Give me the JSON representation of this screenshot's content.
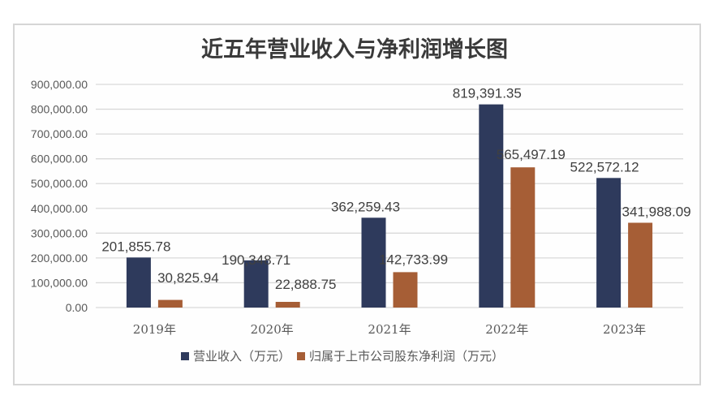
{
  "chart_data": {
    "type": "bar",
    "title": "近五年营业收入与净利润增长图",
    "xlabel": "",
    "ylabel": "",
    "categories": [
      "2019年",
      "2020年",
      "2021年",
      "2022年",
      "2023年"
    ],
    "series": [
      {
        "name": "营业收入（万元）",
        "color": "#2e3a5c",
        "values": [
          201855.78,
          190348.71,
          362259.43,
          819391.35,
          522572.12
        ],
        "labels": [
          "201,855.78",
          "190,348.71",
          "362,259.43",
          "819,391.35",
          "522,572.12"
        ]
      },
      {
        "name": "归属于上市公司股东净利润（万元）",
        "color": "#a65e36",
        "values": [
          30825.94,
          22888.75,
          142733.99,
          565497.19,
          341988.09
        ],
        "labels": [
          "30,825.94",
          "22,888.75",
          "142,733.99",
          "565,497.19",
          "341,988.09"
        ]
      }
    ],
    "ylim": [
      0,
      900000
    ],
    "yticks": [
      0,
      100000,
      200000,
      300000,
      400000,
      500000,
      600000,
      700000,
      800000,
      900000
    ],
    "ytick_labels": [
      "0.00",
      "100,000.00",
      "200,000.00",
      "300,000.00",
      "400,000.00",
      "500,000.00",
      "600,000.00",
      "700,000.00",
      "800,000.00",
      "900,000.00"
    ],
    "grid": true,
    "legend_position": "bottom-center"
  }
}
